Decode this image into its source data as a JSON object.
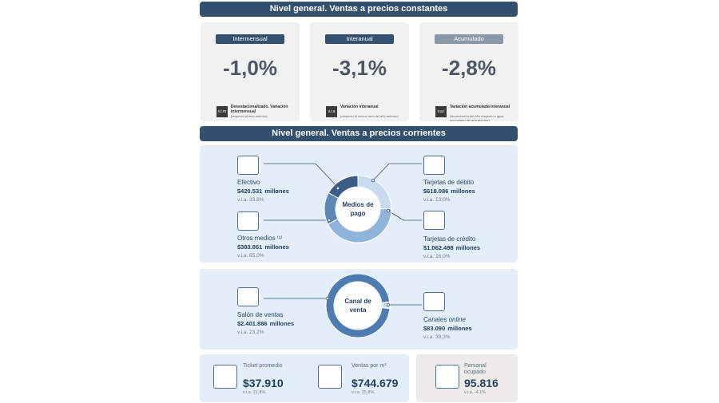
{
  "constant": {
    "title": "Nivel general. Ventas a precios constantes",
    "cards": [
      {
        "tag": "Intermensual",
        "value": "-1,0%",
        "icon": "v.i.m",
        "note_title": "Desestacionalizado. Variación intermensual",
        "note_sub": "(respecto al mes anterior)"
      },
      {
        "tag": "Interanual",
        "value": "-3,1%",
        "icon": "v.i.a",
        "note_title": "Variación interanual",
        "note_sub": "(respecto al mismo mes del año anterior)"
      },
      {
        "tag": "Acumulado",
        "value": "-2,8%",
        "icon": "v.a.i",
        "note_title": "Variación acumulada interanual",
        "note_sub": "(acumulación del año respecto a igual acumulado del año anterior)"
      }
    ]
  },
  "current": {
    "title": "Nivel general. Ventas a precios corrientes"
  },
  "payment": {
    "center": "Medios de pago",
    "items": [
      {
        "name": "Tarjetas de débito",
        "value": 618086,
        "value_label": "$618.086",
        "unit": "millones",
        "yoy": "v.i.a. 13,0%",
        "color": "#c9dcef"
      },
      {
        "name": "Tarjetas de crédito",
        "value": 1062498,
        "value_label": "$1.062.498",
        "unit": "millones",
        "yoy": "v.i.a. 16,0%",
        "color": "#8fb3da"
      },
      {
        "name": "Otros medios ⁽¹⁾",
        "value": 383861,
        "value_label": "$383.861",
        "unit": "millones",
        "yoy": "v.i.a. 65,0%",
        "color": "#5f87b6"
      },
      {
        "name": "Efectivo",
        "value": 420531,
        "value_label": "$420.531",
        "unit": "millones",
        "yoy": "v.i.a. 33,8%",
        "color": "#3b5c84"
      }
    ]
  },
  "channel": {
    "center": "Canal de venta",
    "items": [
      {
        "name": "Canales",
        "name_em": "online",
        "value": 83090,
        "value_label": "$83.090",
        "unit": "millones",
        "yoy": "v.i.a. 38,3%",
        "color": "#c9dcef"
      },
      {
        "name": "Salón de ventas",
        "value": 2401886,
        "value_label": "$2.401.886",
        "unit": "millones",
        "yoy": "v.i.a. 23,2%",
        "color": "#4d7bb2"
      }
    ]
  },
  "kpis": [
    {
      "label": "Ticket promedio",
      "value": "$37.910",
      "yoy": "v.i.a. 21,8%"
    },
    {
      "label": "Ventas por m²",
      "value": "$744.679",
      "yoy": "v.i.a. 25,8%"
    },
    {
      "label": "Personal ocupado",
      "value": "95.816",
      "yoy": "v.i.a. -4,1%"
    }
  ]
}
